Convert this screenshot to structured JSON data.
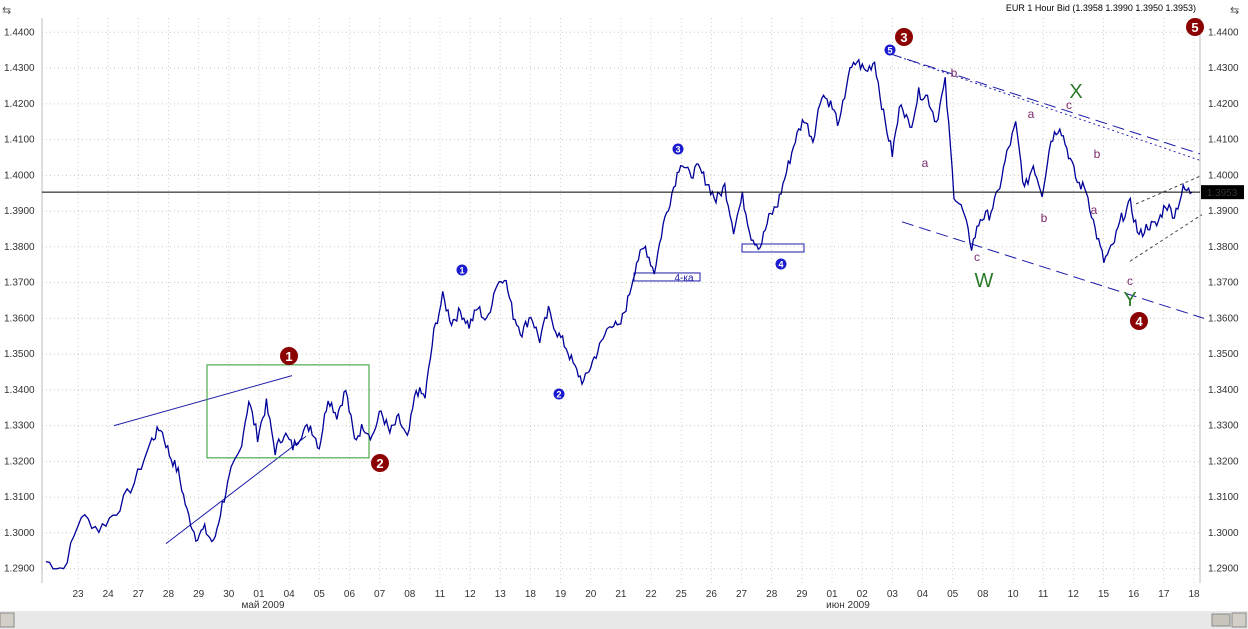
{
  "header": "EUR 1 Hour Bid (1.3958 1.3990 1.3950 1.3953)",
  "chart_data": {
    "type": "line",
    "instrument": "EUR",
    "timeframe": "1 Hour",
    "quote": "Bid",
    "last_ohlc": {
      "open": 1.3958,
      "high": 1.399,
      "low": 1.395,
      "close": 1.3953
    },
    "last_price_label": "1.3953",
    "ylim": [
      1.286,
      1.444
    ],
    "y_ticks": [
      "1.4400",
      "1.4300",
      "1.4200",
      "1.4100",
      "1.4000",
      "1.3900",
      "1.3800",
      "1.3700",
      "1.3600",
      "1.3500",
      "1.3400",
      "1.3300",
      "1.3200",
      "1.3100",
      "1.3000",
      "1.2900"
    ],
    "x_ticks": [
      "23",
      "24",
      "27",
      "28",
      "29",
      "30",
      "01",
      "04",
      "05",
      "06",
      "07",
      "08",
      "11",
      "12",
      "13",
      "18",
      "19",
      "20",
      "21",
      "22",
      "25",
      "26",
      "27",
      "28",
      "29",
      "01",
      "02",
      "03",
      "04",
      "05",
      "08",
      "10",
      "11",
      "12",
      "15",
      "16",
      "17",
      "18"
    ],
    "month_labels": [
      "май 2009",
      "июн 2009"
    ],
    "grid": true,
    "series": [
      {
        "color": "#000099",
        "points": [
          [
            0,
            1.292
          ],
          [
            2,
            1.29
          ],
          [
            4,
            1.305
          ],
          [
            6,
            1.301
          ],
          [
            8,
            1.306
          ],
          [
            10,
            1.314
          ],
          [
            12,
            1.326
          ],
          [
            13,
            1.3295
          ],
          [
            14,
            1.322
          ],
          [
            15,
            1.317
          ],
          [
            16,
            1.306
          ],
          [
            17,
            1.299
          ],
          [
            18,
            1.301
          ],
          [
            19,
            1.297
          ],
          [
            20,
            1.308
          ],
          [
            21,
            1.317
          ],
          [
            22,
            1.323
          ],
          [
            23,
            1.337
          ],
          [
            24,
            1.327
          ],
          [
            25,
            1.336
          ],
          [
            26,
            1.323
          ],
          [
            27,
            1.328
          ],
          [
            28,
            1.324
          ],
          [
            29,
            1.328
          ],
          [
            30,
            1.33
          ],
          [
            31,
            1.324
          ],
          [
            32,
            1.338
          ],
          [
            33,
            1.333
          ],
          [
            34,
            1.34
          ],
          [
            35,
            1.326
          ],
          [
            36,
            1.33
          ],
          [
            37,
            1.327
          ],
          [
            38,
            1.334
          ],
          [
            39,
            1.328
          ],
          [
            40,
            1.332
          ],
          [
            41,
            1.326
          ],
          [
            42,
            1.34
          ],
          [
            43,
            1.338
          ],
          [
            44,
            1.356
          ],
          [
            45,
            1.366
          ],
          [
            46,
            1.359
          ],
          [
            47,
            1.362
          ],
          [
            48,
            1.358
          ],
          [
            49,
            1.363
          ],
          [
            50,
            1.359
          ],
          [
            51,
            1.369
          ],
          [
            52,
            1.372
          ],
          [
            53,
            1.361
          ],
          [
            54,
            1.356
          ],
          [
            55,
            1.361
          ],
          [
            56,
            1.354
          ],
          [
            57,
            1.362
          ],
          [
            58,
            1.356
          ],
          [
            59,
            1.352
          ],
          [
            60,
            1.346
          ],
          [
            61,
            1.342
          ],
          [
            62,
            1.348
          ],
          [
            63,
            1.353
          ],
          [
            64,
            1.359
          ],
          [
            65,
            1.357
          ],
          [
            66,
            1.365
          ],
          [
            67,
            1.376
          ],
          [
            68,
            1.38
          ],
          [
            69,
            1.373
          ],
          [
            70,
            1.386
          ],
          [
            71,
            1.395
          ],
          [
            72,
            1.404
          ],
          [
            73,
            1.4
          ],
          [
            74,
            1.402
          ],
          [
            75,
            1.398
          ],
          [
            76,
            1.393
          ],
          [
            77,
            1.397
          ],
          [
            78,
            1.385
          ],
          [
            79,
            1.394
          ],
          [
            80,
            1.383
          ],
          [
            81,
            1.38
          ],
          [
            82,
            1.388
          ],
          [
            83,
            1.392
          ],
          [
            84,
            1.401
          ],
          [
            85,
            1.41
          ],
          [
            86,
            1.416
          ],
          [
            87,
            1.41
          ],
          [
            88,
            1.423
          ],
          [
            89,
            1.42
          ],
          [
            90,
            1.414
          ],
          [
            91,
            1.428
          ],
          [
            92,
            1.432
          ],
          [
            93,
            1.429
          ],
          [
            94,
            1.432
          ],
          [
            95,
            1.417
          ],
          [
            96,
            1.406
          ],
          [
            97,
            1.421
          ],
          [
            98,
            1.413
          ],
          [
            99,
            1.423
          ],
          [
            100,
            1.422
          ],
          [
            101,
            1.415
          ],
          [
            102,
            1.426
          ],
          [
            103,
            1.395
          ],
          [
            104,
            1.39
          ],
          [
            105,
            1.38
          ],
          [
            106,
            1.388
          ],
          [
            107,
            1.389
          ],
          [
            108,
            1.395
          ],
          [
            109,
            1.406
          ],
          [
            110,
            1.414
          ],
          [
            111,
            1.396
          ],
          [
            112,
            1.403
          ],
          [
            113,
            1.395
          ],
          [
            114,
            1.41
          ],
          [
            115,
            1.414
          ],
          [
            116,
            1.406
          ],
          [
            117,
            1.398
          ],
          [
            118,
            1.396
          ],
          [
            119,
            1.385
          ],
          [
            120,
            1.376
          ],
          [
            121,
            1.38
          ],
          [
            122,
            1.388
          ],
          [
            123,
            1.392
          ],
          [
            124,
            1.383
          ],
          [
            125,
            1.386
          ],
          [
            126,
            1.386
          ],
          [
            127,
            1.392
          ],
          [
            128,
            1.389
          ],
          [
            129,
            1.396
          ],
          [
            130,
            1.3953
          ]
        ]
      }
    ],
    "horizontal_line": 1.3953,
    "annotations": [
      "1",
      "2",
      "3",
      "4",
      "5",
      "4-ка",
      "a",
      "b",
      "c",
      "W",
      "X",
      "Y"
    ]
  }
}
